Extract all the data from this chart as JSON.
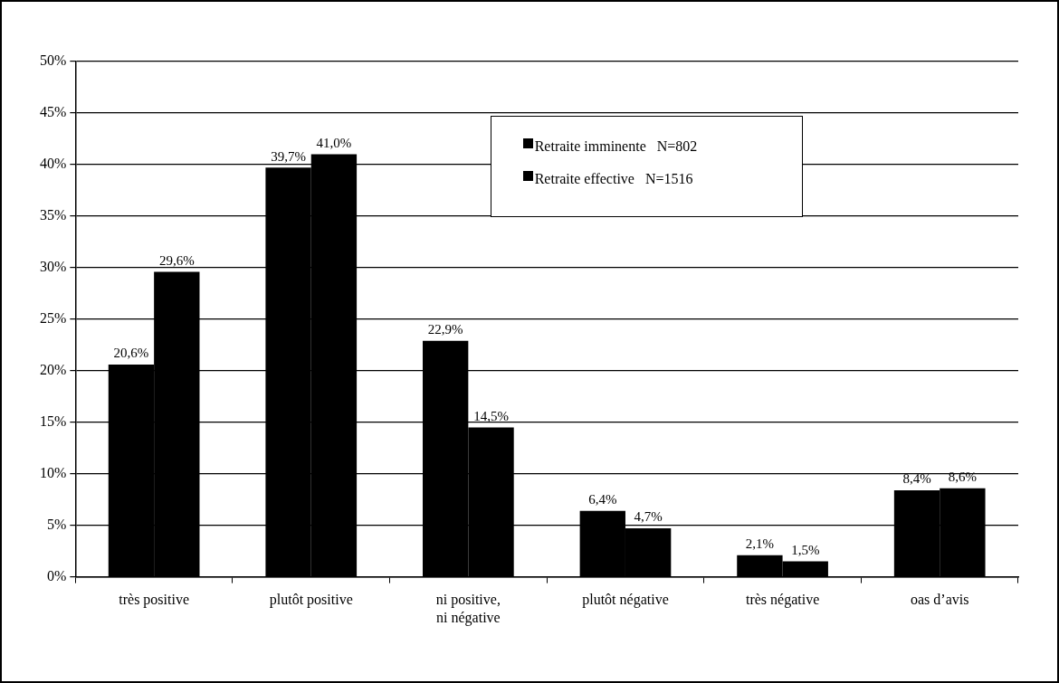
{
  "chart_data": {
    "type": "bar",
    "categories": [
      "très positive",
      "plutôt positive",
      "ni positive,\nni négative",
      "plutôt négative",
      "très négative",
      "oas d’avis"
    ],
    "series": [
      {
        "name": "Retraite imminente   N=802",
        "color": "#000000",
        "values": [
          20.6,
          39.7,
          22.9,
          6.4,
          2.1,
          8.4
        ],
        "value_labels": [
          "20,6%",
          "39,7%",
          "22,9%",
          "6,4%",
          "2,1%",
          "8,4%"
        ]
      },
      {
        "name": "Retraite effective   N=1516",
        "color": "#000000",
        "values": [
          29.6,
          41.0,
          14.5,
          4.7,
          1.5,
          8.6
        ],
        "value_labels": [
          "29,6%",
          "41,0%",
          "14,5%",
          "4,7%",
          "1,5%",
          "8,6%"
        ]
      }
    ],
    "ylim": [
      0,
      50
    ],
    "yticks": [
      {
        "value": 0,
        "label": "0%"
      },
      {
        "value": 5,
        "label": "5%"
      },
      {
        "value": 10,
        "label": "10%"
      },
      {
        "value": 15,
        "label": "15%"
      },
      {
        "value": 20,
        "label": "20%"
      },
      {
        "value": 25,
        "label": "25%"
      },
      {
        "value": 30,
        "label": "30%"
      },
      {
        "value": 35,
        "label": "35%"
      },
      {
        "value": 40,
        "label": "40%"
      },
      {
        "value": 45,
        "label": "45%"
      },
      {
        "value": 50,
        "label": "50%"
      }
    ],
    "grid": "y",
    "legend": "top right"
  }
}
